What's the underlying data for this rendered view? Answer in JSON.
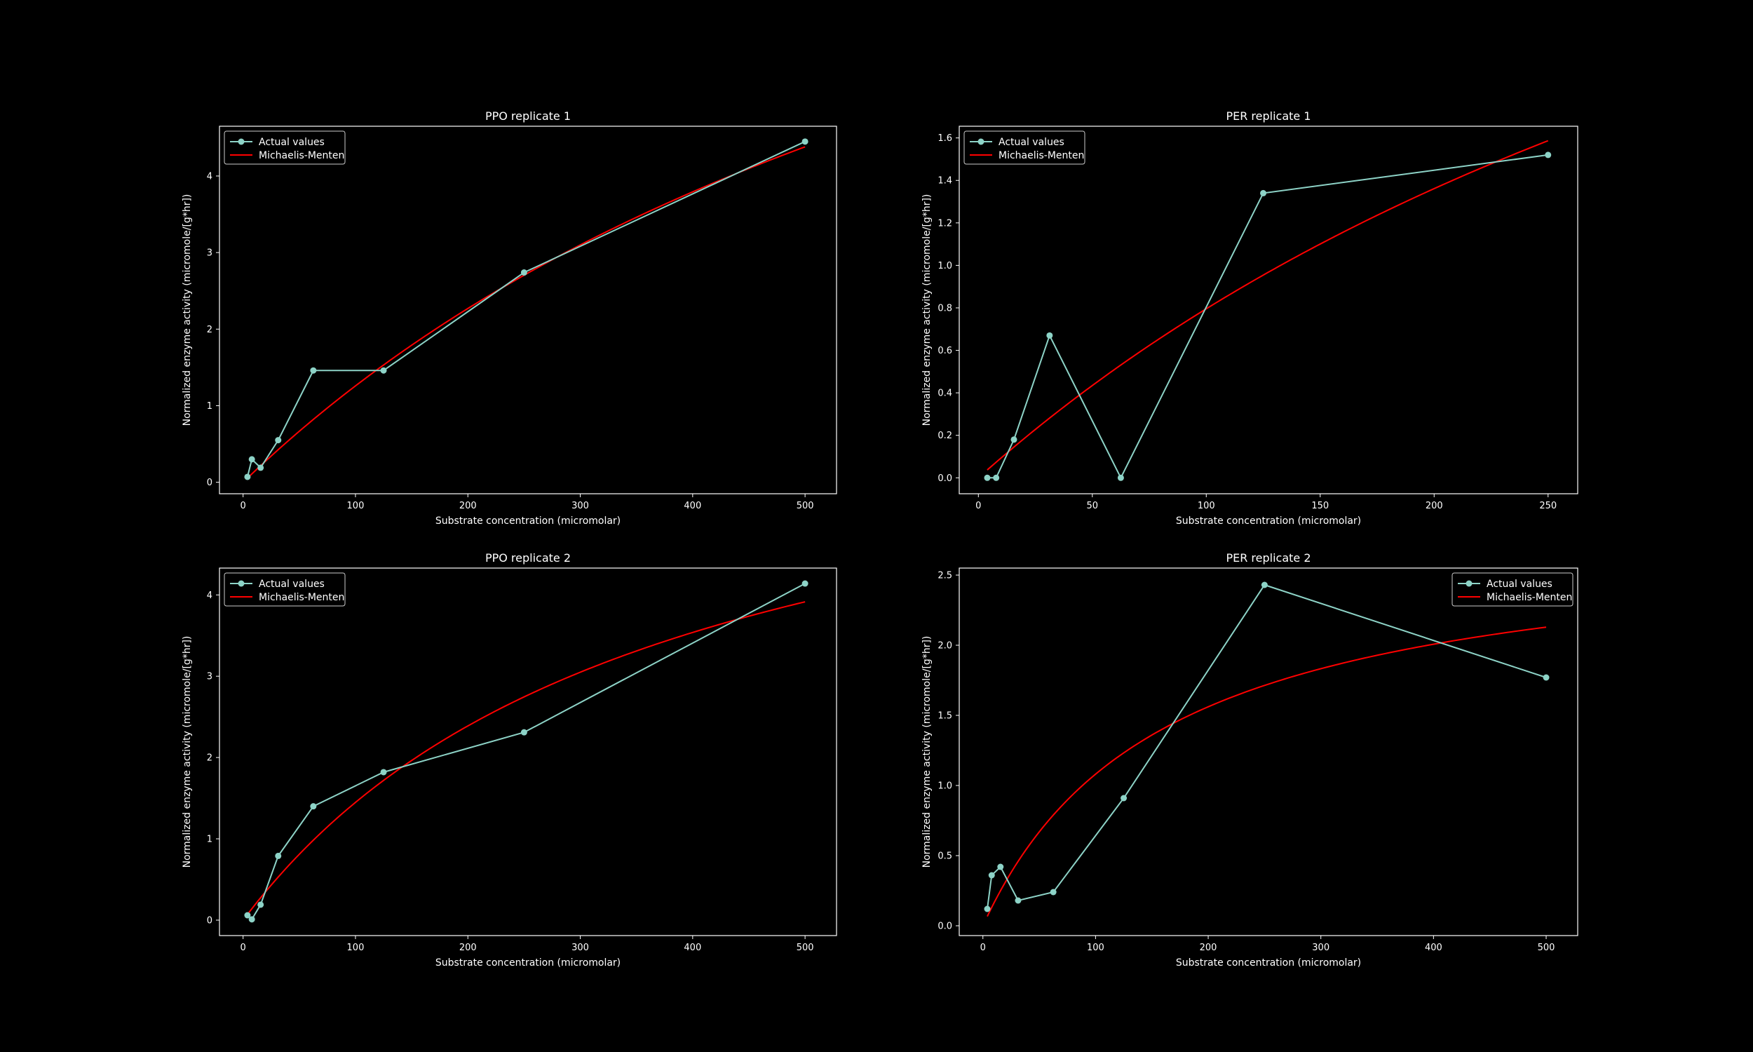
{
  "style": {
    "background": "#000000",
    "axes_color": "#ffffff",
    "actual_color": "#8dd3c7",
    "model_color": "#ff0000"
  },
  "chart_data": [
    {
      "type": "line",
      "title": "PPO replicate 1",
      "xlabel": "Substrate concentration (micromolar)",
      "ylabel": "Normalized enzyme activity (micromole/[g*hr])",
      "xlim": [
        -21,
        528
      ],
      "ylim": [
        -0.15,
        4.65
      ],
      "xticks": [
        0,
        100,
        200,
        300,
        400,
        500
      ],
      "yticks": [
        0,
        1,
        2,
        3,
        4
      ],
      "legend_position": "top-left",
      "grid": false,
      "series": [
        {
          "name": "Actual values",
          "kind": "line-marker",
          "x": [
            3.9,
            7.8,
            15.6,
            31.25,
            62.5,
            125,
            250,
            500
          ],
          "y": [
            0.07,
            0.3,
            0.19,
            0.55,
            1.46,
            1.46,
            2.74,
            4.45
          ]
        },
        {
          "name": "Michaelis-Menten",
          "kind": "curve",
          "vmax": 11.53,
          "km": 816,
          "x_range": [
            3.9,
            500
          ]
        }
      ]
    },
    {
      "type": "line",
      "title": "PER replicate 1",
      "xlabel": "Substrate concentration (micromolar)",
      "ylabel": "Normalized enzyme activity (micromole/[g*hr])",
      "xlim": [
        -8.4,
        263
      ],
      "ylim": [
        -0.075,
        1.655
      ],
      "xticks": [
        0,
        50,
        100,
        150,
        200,
        250
      ],
      "yticks": [
        0.0,
        0.2,
        0.4,
        0.6,
        0.8,
        1.0,
        1.2,
        1.4,
        1.6
      ],
      "legend_position": "top-left",
      "grid": false,
      "series": [
        {
          "name": "Actual values",
          "kind": "line-marker",
          "x": [
            3.9,
            7.8,
            15.6,
            31.25,
            62.5,
            125,
            250
          ],
          "y": [
            0.0,
            0.0,
            0.18,
            0.67,
            0.0,
            1.34,
            1.52
          ]
        },
        {
          "name": "Michaelis-Menten",
          "kind": "curve",
          "vmax": 4.71,
          "km": 492,
          "x_range": [
            3.9,
            250
          ]
        }
      ]
    },
    {
      "type": "line",
      "title": "PPO replicate 2",
      "xlabel": "Substrate concentration (micromolar)",
      "ylabel": "Normalized enzyme activity (micromole/[g*hr])",
      "xlim": [
        -21,
        528
      ],
      "ylim": [
        -0.19,
        4.33
      ],
      "xticks": [
        0,
        100,
        200,
        300,
        400,
        500
      ],
      "yticks": [
        0,
        1,
        2,
        3,
        4
      ],
      "legend_position": "top-left",
      "grid": false,
      "series": [
        {
          "name": "Actual values",
          "kind": "line-marker",
          "x": [
            3.9,
            7.8,
            15.6,
            31.25,
            62.5,
            125,
            250,
            500
          ],
          "y": [
            0.06,
            0.01,
            0.19,
            0.79,
            1.4,
            1.82,
            2.31,
            4.14
          ]
        },
        {
          "name": "Michaelis-Menten",
          "kind": "curve",
          "vmax": 6.82,
          "km": 371,
          "x_range": [
            3.9,
            500
          ]
        }
      ]
    },
    {
      "type": "line",
      "title": "PER replicate 2",
      "xlabel": "Substrate concentration (micromolar)",
      "ylabel": "Normalized enzyme activity (micromole/[g*hr])",
      "xlim": [
        -21,
        528
      ],
      "ylim": [
        -0.07,
        2.55
      ],
      "xticks": [
        0,
        100,
        200,
        300,
        400,
        500
      ],
      "yticks": [
        0.0,
        0.5,
        1.0,
        1.5,
        2.0,
        2.5
      ],
      "legend_position": "top-right",
      "grid": false,
      "series": [
        {
          "name": "Actual values",
          "kind": "line-marker",
          "x": [
            3.9,
            7.8,
            15.6,
            31.25,
            62.5,
            125,
            250,
            500
          ],
          "y": [
            0.12,
            0.36,
            0.42,
            0.18,
            0.24,
            0.91,
            2.43,
            1.77
          ]
        },
        {
          "name": "Michaelis-Menten",
          "kind": "curve",
          "vmax": 2.81,
          "km": 160,
          "x_range": [
            3.9,
            500
          ]
        }
      ]
    }
  ]
}
